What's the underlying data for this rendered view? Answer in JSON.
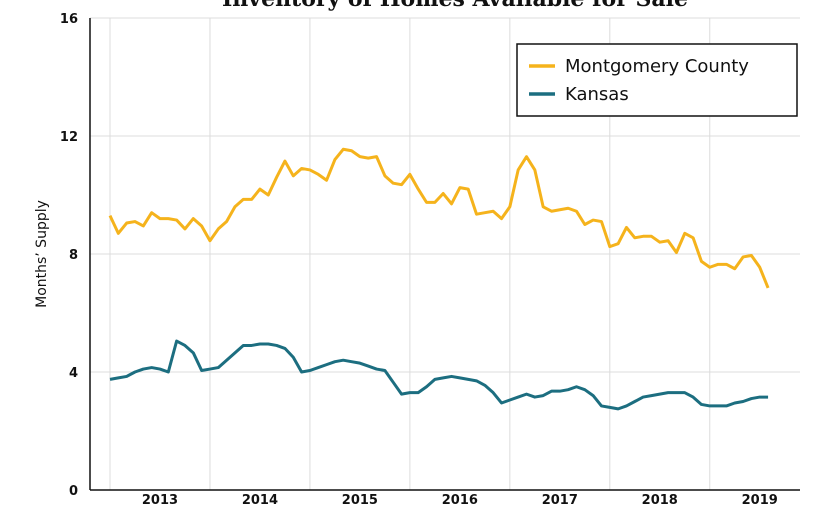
{
  "chart_data": {
    "type": "line",
    "title": "Inventory of Homes Available for Sale",
    "y_label": "Months’ Supply",
    "categories": [
      null,
      null,
      null,
      null,
      null,
      null,
      "2013",
      null,
      null,
      null,
      null,
      null,
      null,
      null,
      null,
      null,
      null,
      null,
      "2014",
      null,
      null,
      null,
      null,
      null,
      null,
      null,
      null,
      null,
      null,
      null,
      "2015",
      null,
      null,
      null,
      null,
      null,
      null,
      null,
      null,
      null,
      null,
      null,
      "2016",
      null,
      null,
      null,
      null,
      null,
      null,
      null,
      null,
      null,
      null,
      null,
      "2017",
      null,
      null,
      null,
      null,
      null,
      null,
      null,
      null,
      null,
      null,
      null,
      "2018",
      null,
      null,
      null,
      null,
      null,
      null,
      null,
      null,
      null,
      null,
      null,
      "2019",
      null
    ],
    "series": [
      {
        "name": "Montgomery County",
        "color": "#f5b31c",
        "values": [
          9.3,
          8.7,
          9.05,
          9.1,
          8.95,
          9.4,
          9.2,
          9.2,
          9.15,
          8.85,
          9.2,
          8.95,
          8.45,
          8.85,
          9.1,
          9.6,
          9.85,
          9.85,
          10.2,
          10.0,
          10.6,
          11.15,
          10.65,
          10.9,
          10.85,
          10.7,
          10.5,
          11.2,
          11.55,
          11.5,
          11.3,
          11.25,
          11.3,
          10.65,
          10.4,
          10.35,
          10.7,
          10.2,
          9.75,
          9.75,
          10.05,
          9.7,
          10.25,
          10.2,
          9.35,
          9.4,
          9.45,
          9.2,
          9.6,
          10.85,
          11.3,
          10.85,
          9.6,
          9.45,
          9.5,
          9.55,
          9.45,
          9.0,
          9.15,
          9.1,
          8.25,
          8.35,
          8.9,
          8.55,
          8.6,
          8.6,
          8.4,
          8.45,
          8.05,
          8.7,
          8.55,
          7.75,
          7.55,
          7.65,
          7.65,
          7.5,
          7.9,
          7.95,
          7.55,
          6.85
        ]
      },
      {
        "name": "Kansas",
        "color": "#1c6e80",
        "values": [
          3.75,
          3.8,
          3.85,
          4.0,
          4.1,
          4.15,
          4.1,
          4.0,
          5.05,
          4.9,
          4.65,
          4.05,
          4.1,
          4.15,
          4.4,
          4.65,
          4.9,
          4.9,
          4.95,
          4.95,
          4.9,
          4.8,
          4.5,
          4.0,
          4.05,
          4.15,
          4.25,
          4.35,
          4.4,
          4.35,
          4.3,
          4.2,
          4.1,
          4.05,
          3.65,
          3.25,
          3.3,
          3.3,
          3.5,
          3.75,
          3.8,
          3.85,
          3.8,
          3.75,
          3.7,
          3.55,
          3.3,
          2.95,
          3.05,
          3.15,
          3.25,
          3.15,
          3.2,
          3.35,
          3.35,
          3.4,
          3.5,
          3.4,
          3.2,
          2.85,
          2.8,
          2.75,
          2.85,
          3.0,
          3.15,
          3.2,
          3.25,
          3.3,
          3.3,
          3.3,
          3.15,
          2.9,
          2.85,
          2.85,
          2.85,
          2.95,
          3.0,
          3.1,
          3.15,
          3.15
        ]
      }
    ],
    "ylim": [
      0,
      16
    ],
    "yticks": [
      0,
      4,
      8,
      12,
      16
    ],
    "grid": true,
    "legend": "upper right"
  }
}
